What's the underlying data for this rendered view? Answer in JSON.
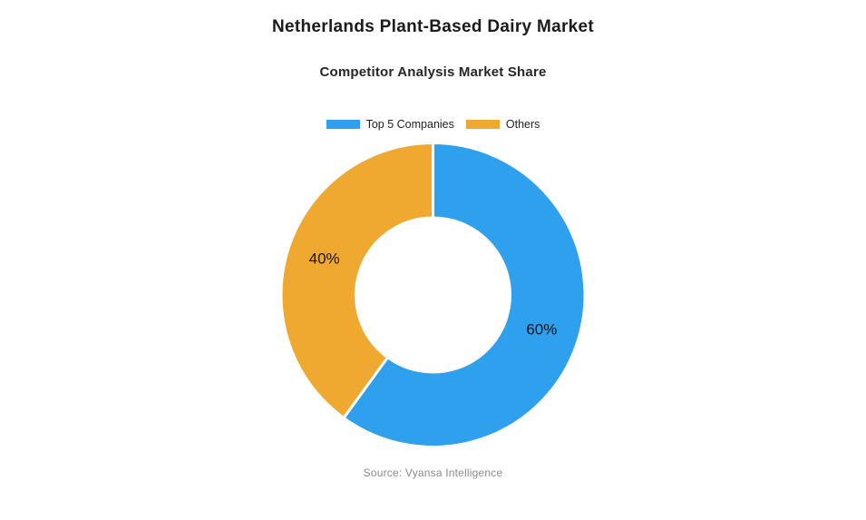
{
  "page": {
    "title": "Netherlands Plant-Based Dairy Market",
    "subtitle": "Competitor Analysis Market Share",
    "source": "Source: Vyansa Intelligence"
  },
  "legend": {
    "items": [
      {
        "label": "Top 5 Companies",
        "color": "#2FA0ED"
      },
      {
        "label": "Others",
        "color": "#F0A930"
      }
    ],
    "position": "top-center"
  },
  "chart_data": {
    "type": "pie",
    "subtype": "donut",
    "title": "Netherlands Plant-Based Dairy Market",
    "subtitle": "Competitor Analysis Market Share",
    "labels": [
      "Top 5 Companies",
      "Others"
    ],
    "values": [
      60,
      40
    ],
    "value_labels": [
      "60%",
      "40%"
    ],
    "colors": [
      "#2FA0ED",
      "#F0A930"
    ],
    "start_angle_deg": 0,
    "direction": "clockwise",
    "inner_radius_ratio": 0.51,
    "slice_border_color": "#ffffff",
    "label_color": "#111111",
    "legend_position": "top",
    "source": "Source: Vyansa Intelligence"
  }
}
